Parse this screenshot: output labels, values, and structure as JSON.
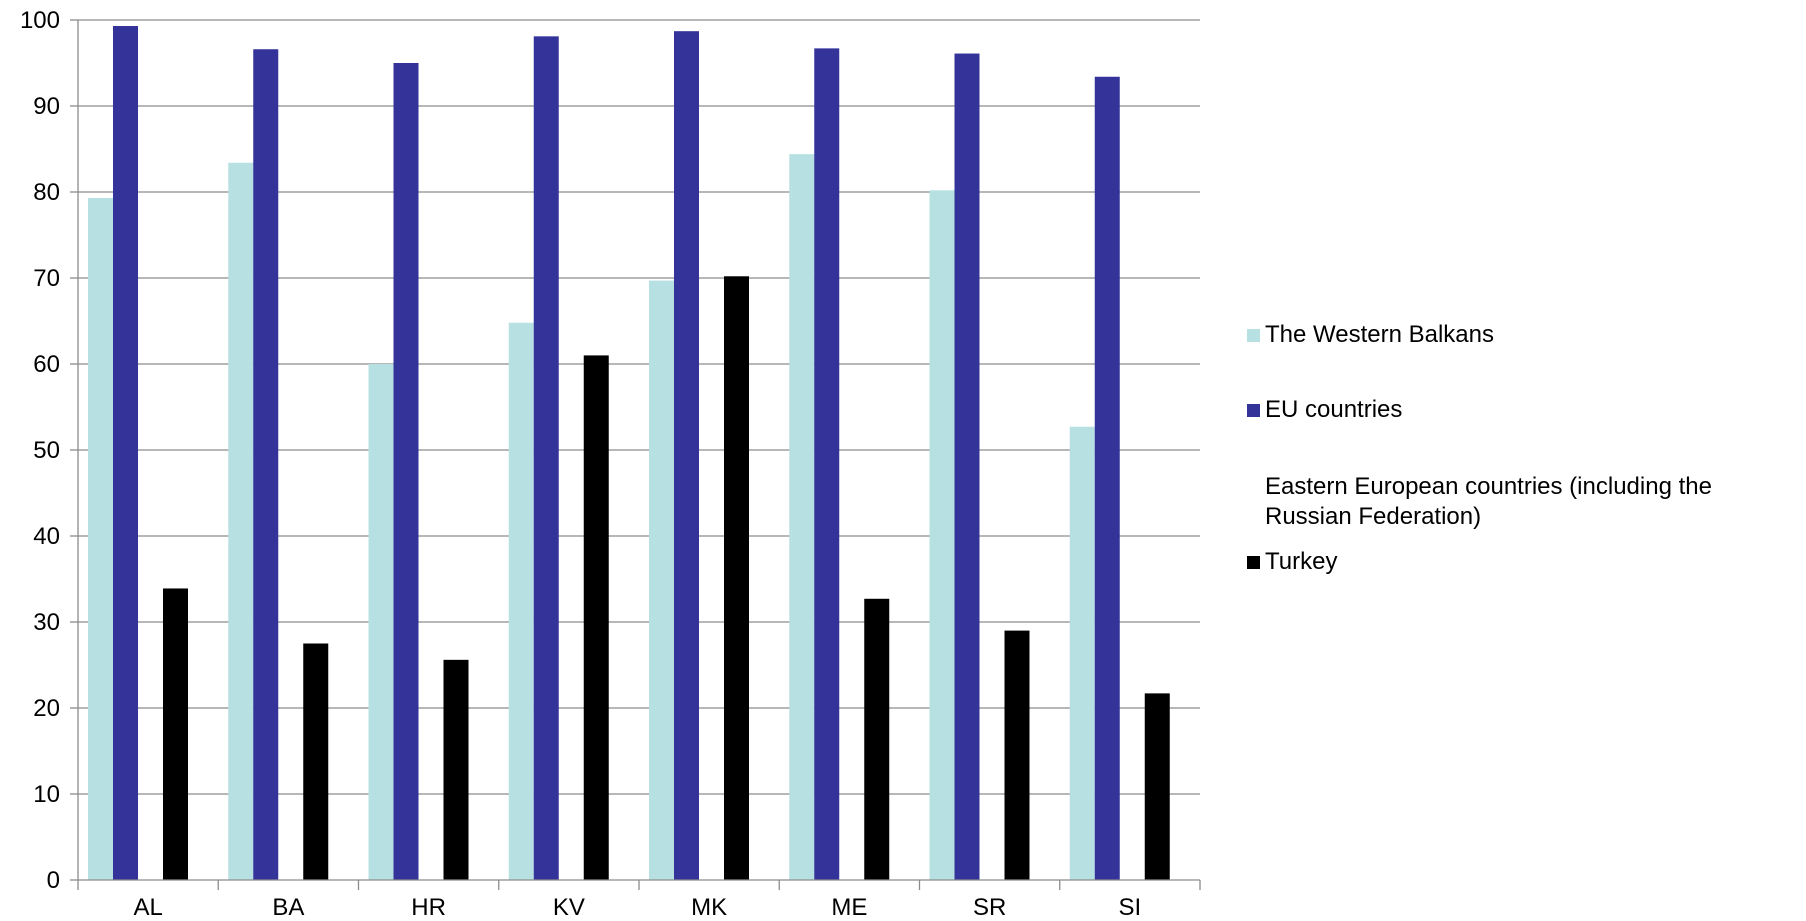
{
  "chart_data": {
    "type": "bar",
    "title": "",
    "xlabel": "",
    "ylabel": "",
    "ylim": [
      0,
      100
    ],
    "yticks": [
      0,
      10,
      20,
      30,
      40,
      50,
      60,
      70,
      80,
      90,
      100
    ],
    "grid": true,
    "legend_position": "right",
    "categories": [
      "AL",
      "BA",
      "HR",
      "KV",
      "MK",
      "ME",
      "SR",
      "SI"
    ],
    "series": [
      {
        "name": "The Western Balkans",
        "color": "#b7e0e3",
        "values": [
          79.3,
          83.4,
          60.0,
          64.8,
          69.7,
          84.4,
          80.2,
          52.7
        ]
      },
      {
        "name": "EU countries",
        "color": "#333399",
        "values": [
          99.3,
          96.6,
          95.0,
          98.1,
          98.7,
          96.7,
          96.1,
          93.4
        ]
      },
      {
        "name": "Eastern European countries (including the Russian Federation)",
        "color": "#ffffff",
        "values": [
          0,
          0,
          0,
          0,
          0,
          0,
          0,
          0
        ]
      },
      {
        "name": "Turkey",
        "color": "#000000",
        "values": [
          33.9,
          27.5,
          25.6,
          61.0,
          70.2,
          32.7,
          29.0,
          21.7
        ]
      }
    ]
  }
}
